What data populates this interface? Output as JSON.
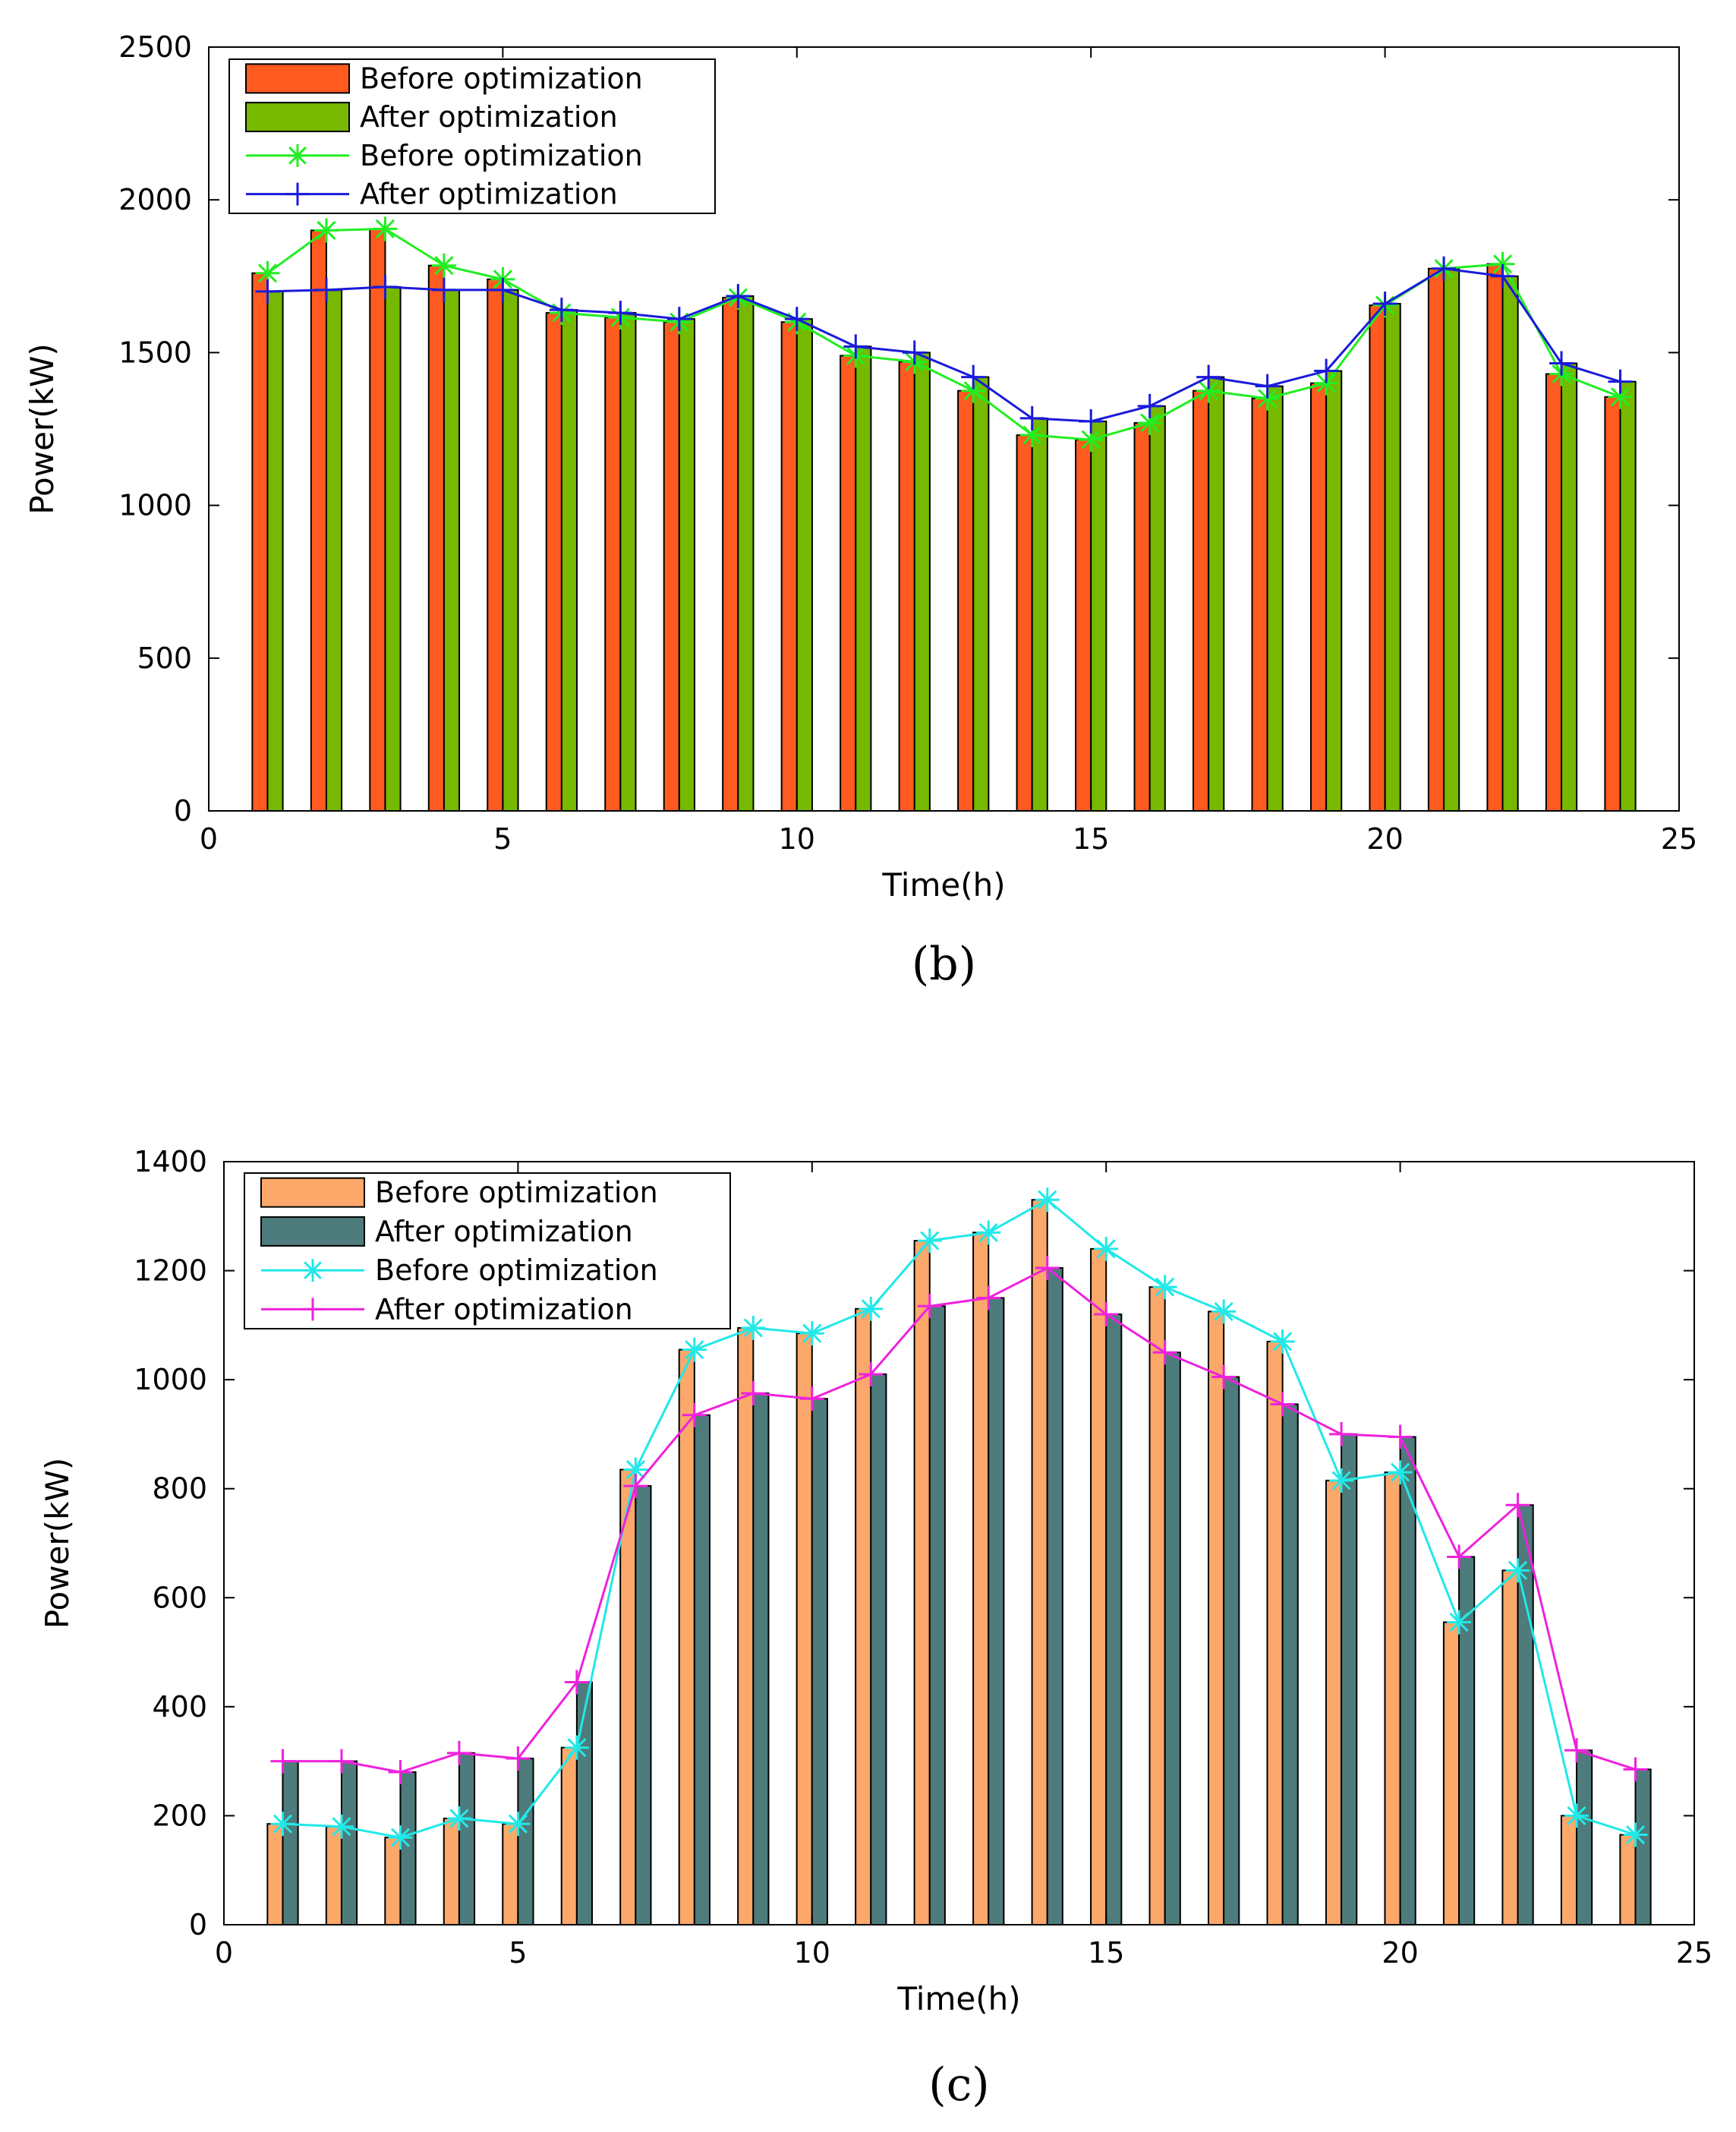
{
  "chart_data": [
    {
      "type": "bar",
      "panel_label": "(b)",
      "xlabel": "Time(h)",
      "ylabel": "Power(kW)",
      "xlim": [
        0,
        25
      ],
      "ylim": [
        0,
        2500
      ],
      "xticks": [
        0,
        5,
        10,
        15,
        20,
        25
      ],
      "yticks": [
        0,
        500,
        1000,
        1500,
        2000,
        2500
      ],
      "x": [
        1,
        2,
        3,
        4,
        5,
        6,
        7,
        8,
        9,
        10,
        11,
        12,
        13,
        14,
        15,
        16,
        17,
        18,
        19,
        20,
        21,
        22,
        23,
        24
      ],
      "legend_position": "top-left",
      "series": [
        {
          "name": "Before optimization",
          "kind": "bar",
          "color": "#ff5a1f",
          "values": [
            1760,
            1900,
            1905,
            1785,
            1740,
            1630,
            1615,
            1600,
            1680,
            1600,
            1490,
            1470,
            1375,
            1230,
            1215,
            1270,
            1375,
            1350,
            1400,
            1655,
            1775,
            1790,
            1430,
            1355
          ]
        },
        {
          "name": "After optimization",
          "kind": "bar",
          "color": "#77b800",
          "values": [
            1700,
            1705,
            1715,
            1705,
            1705,
            1640,
            1630,
            1610,
            1685,
            1610,
            1520,
            1500,
            1420,
            1285,
            1275,
            1325,
            1420,
            1390,
            1440,
            1660,
            1775,
            1750,
            1465,
            1405
          ]
        },
        {
          "name": "Before optimization",
          "kind": "line",
          "marker": "*",
          "color": "#22ee22",
          "values": [
            1760,
            1900,
            1905,
            1785,
            1740,
            1630,
            1615,
            1600,
            1680,
            1600,
            1490,
            1470,
            1375,
            1230,
            1215,
            1270,
            1375,
            1350,
            1400,
            1655,
            1775,
            1790,
            1430,
            1355
          ]
        },
        {
          "name": "After optimization",
          "kind": "line",
          "marker": "+",
          "color": "#1a1adb",
          "values": [
            1700,
            1705,
            1715,
            1705,
            1705,
            1640,
            1630,
            1610,
            1685,
            1610,
            1520,
            1500,
            1420,
            1285,
            1275,
            1325,
            1420,
            1390,
            1440,
            1660,
            1775,
            1750,
            1465,
            1405
          ]
        }
      ]
    },
    {
      "type": "bar",
      "panel_label": "(c)",
      "xlabel": "Time(h)",
      "ylabel": "Power(kW)",
      "xlim": [
        0,
        25
      ],
      "ylim": [
        0,
        1400
      ],
      "xticks": [
        0,
        5,
        10,
        15,
        20,
        25
      ],
      "yticks": [
        0,
        200,
        400,
        600,
        800,
        1000,
        1200,
        1400
      ],
      "x": [
        1,
        2,
        3,
        4,
        5,
        6,
        7,
        8,
        9,
        10,
        11,
        12,
        13,
        14,
        15,
        16,
        17,
        18,
        19,
        20,
        21,
        22,
        23,
        24
      ],
      "legend_position": "top-left",
      "series": [
        {
          "name": "Before optimization",
          "kind": "bar",
          "color": "#fba86a",
          "values": [
            185,
            180,
            160,
            195,
            185,
            325,
            835,
            1055,
            1095,
            1085,
            1130,
            1255,
            1270,
            1330,
            1240,
            1170,
            1125,
            1070,
            815,
            830,
            555,
            650,
            200,
            165
          ]
        },
        {
          "name": "After optimization",
          "kind": "bar",
          "color": "#4e7b7b",
          "values": [
            300,
            300,
            280,
            315,
            305,
            445,
            805,
            935,
            975,
            965,
            1010,
            1135,
            1150,
            1205,
            1120,
            1050,
            1005,
            955,
            900,
            895,
            675,
            770,
            320,
            285
          ]
        },
        {
          "name": "Before optimization",
          "kind": "line",
          "marker": "*",
          "color": "#22e8e8",
          "values": [
            185,
            180,
            160,
            195,
            185,
            325,
            835,
            1055,
            1095,
            1085,
            1130,
            1255,
            1270,
            1330,
            1240,
            1170,
            1125,
            1070,
            815,
            830,
            555,
            650,
            200,
            165
          ]
        },
        {
          "name": "After optimization",
          "kind": "line",
          "marker": "+",
          "color": "#ee22dd",
          "values": [
            300,
            300,
            280,
            315,
            305,
            445,
            805,
            935,
            975,
            965,
            1010,
            1135,
            1150,
            1205,
            1120,
            1050,
            1005,
            955,
            900,
            895,
            675,
            770,
            320,
            285
          ]
        }
      ]
    }
  ]
}
